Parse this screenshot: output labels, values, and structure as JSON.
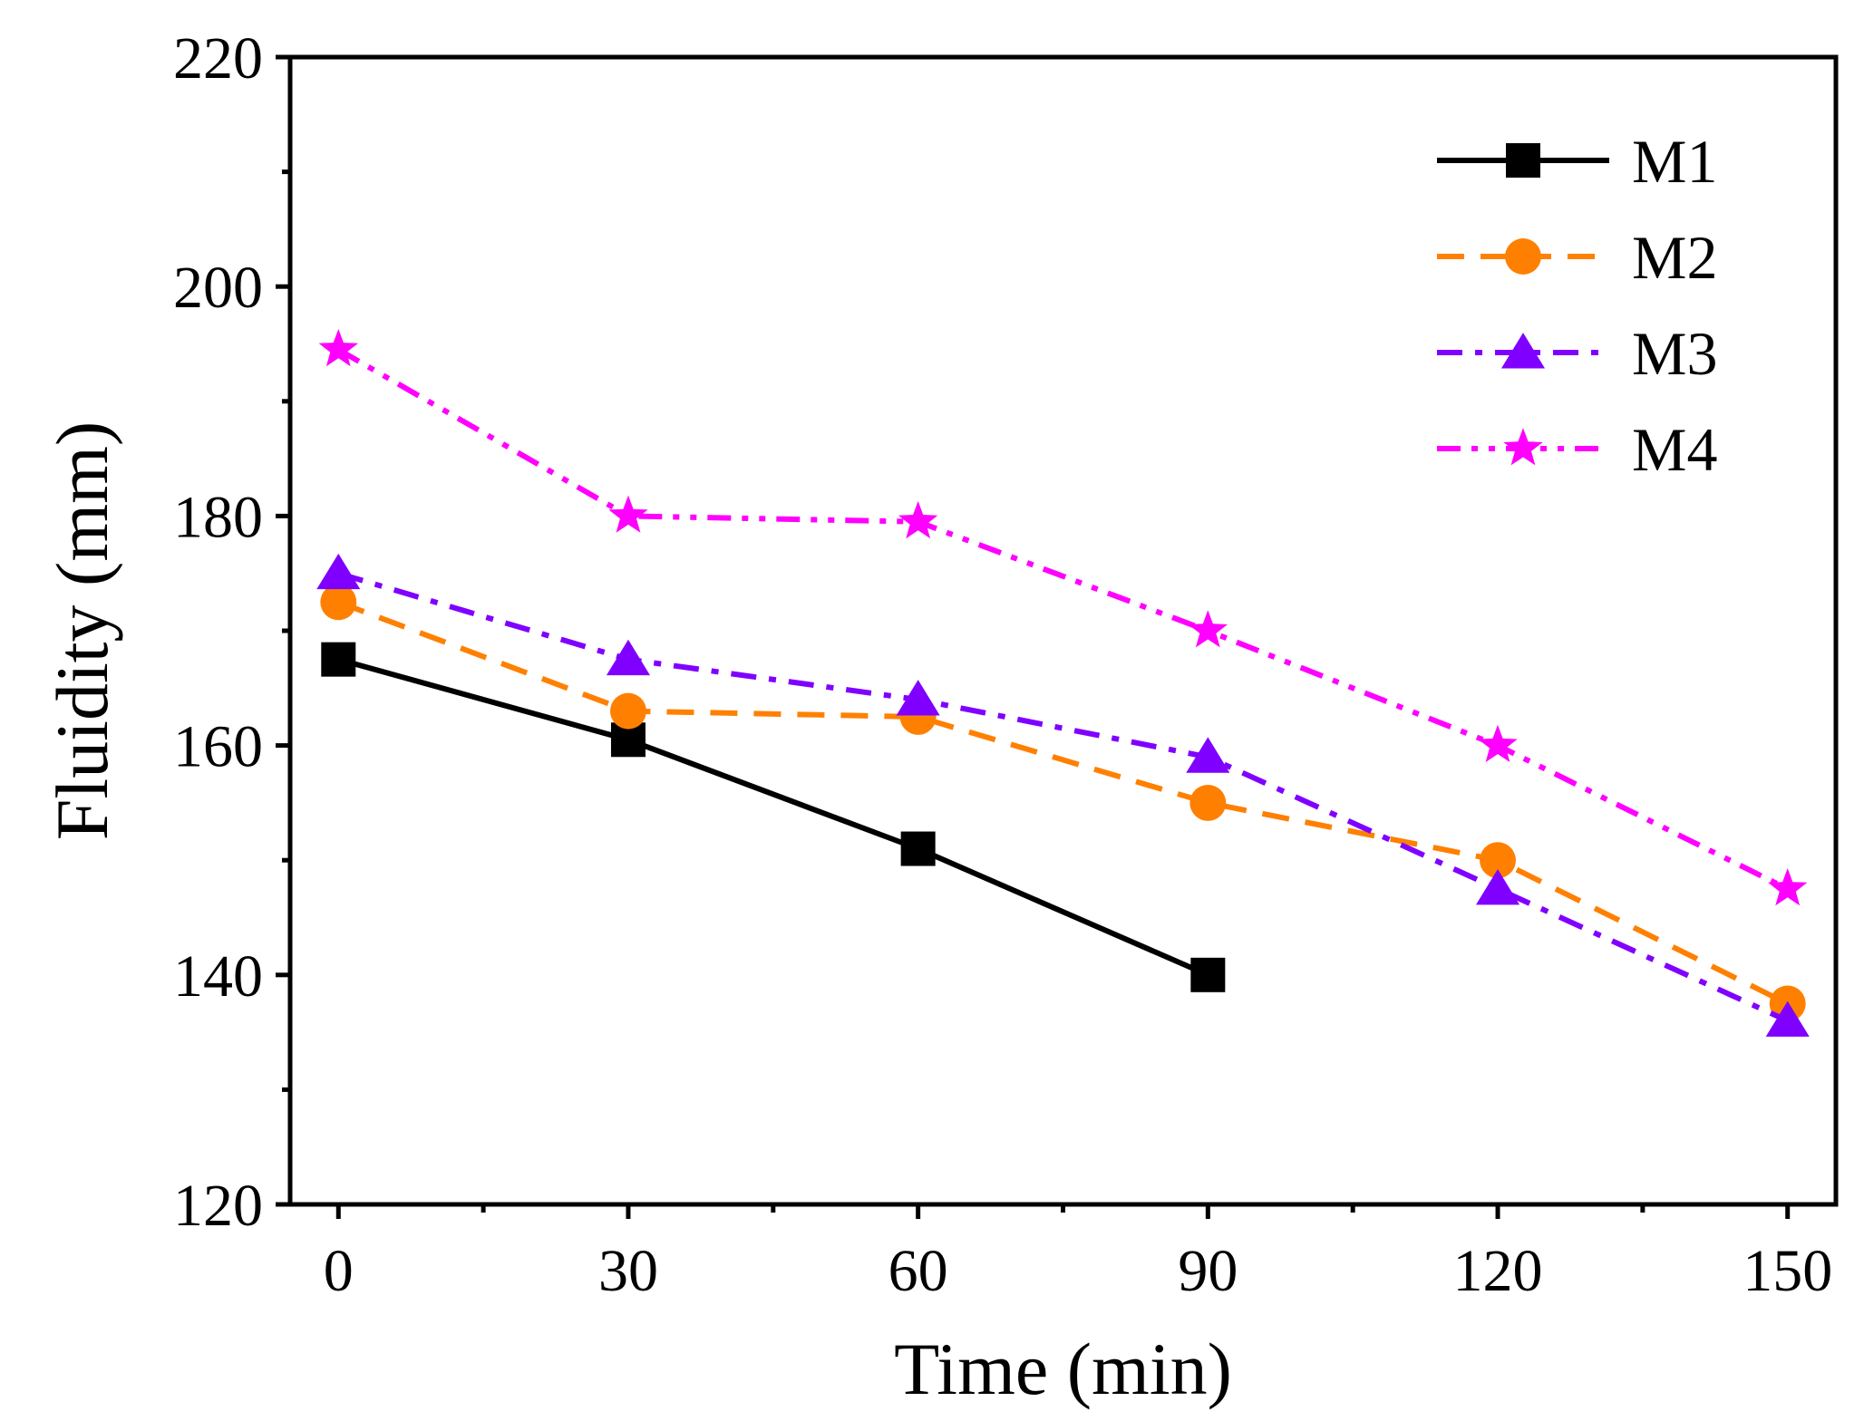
{
  "chart_data": {
    "type": "line",
    "title": "",
    "xlabel": "Time (min)",
    "ylabel": "Fluidity (mm)",
    "x": [
      0,
      30,
      60,
      90,
      120,
      150
    ],
    "xlim": [
      -5,
      155
    ],
    "ylim": [
      120,
      220
    ],
    "xticks": [
      0,
      30,
      60,
      90,
      120,
      150
    ],
    "xtick_labels": [
      "0",
      "30",
      "60",
      "90",
      "120",
      "150"
    ],
    "yticks": [
      120,
      140,
      160,
      180,
      200,
      220
    ],
    "ytick_labels": [
      "120",
      "140",
      "160",
      "180",
      "200",
      "220"
    ],
    "legend_position": "top-right",
    "grid": false,
    "series": [
      {
        "name": "M1",
        "x": [
          0,
          30,
          60,
          90
        ],
        "values": [
          167.5,
          160.5,
          151,
          140
        ],
        "color": "#000000",
        "marker": "square",
        "dash": "solid"
      },
      {
        "name": "M2",
        "x": [
          0,
          30,
          60,
          90,
          120,
          150
        ],
        "values": [
          172.5,
          163,
          162.5,
          155,
          150,
          137.5
        ],
        "color": "#ff8000",
        "marker": "circle",
        "dash": "dash"
      },
      {
        "name": "M3",
        "x": [
          0,
          30,
          60,
          90,
          120,
          150
        ],
        "values": [
          175,
          167.5,
          164,
          159,
          147.5,
          136
        ],
        "color": "#8000ff",
        "marker": "triangle",
        "dash": "dashdot"
      },
      {
        "name": "M4",
        "x": [
          0,
          30,
          60,
          90,
          120,
          150
        ],
        "values": [
          194.5,
          180,
          179.5,
          170,
          160,
          147.5
        ],
        "color": "#ff00ff",
        "marker": "star",
        "dash": "dashdotdot"
      }
    ]
  }
}
